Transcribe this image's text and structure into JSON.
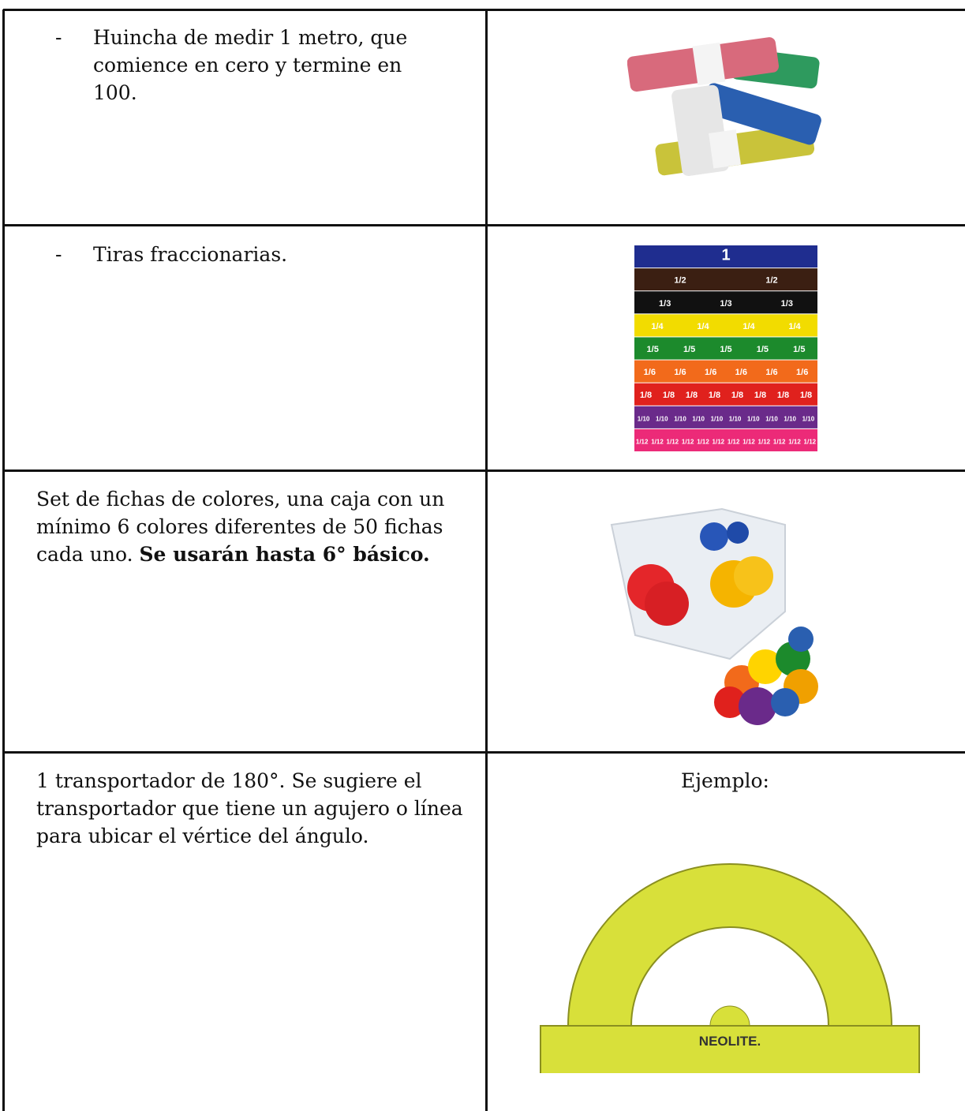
{
  "table": {
    "rows": [
      {
        "bullet": "-",
        "text": "Huincha de medir 1 metro, que comience en cero y termine en 100."
      },
      {
        "bullet": "-",
        "text": "Tiras fraccionarias.",
        "strips": [
          {
            "label": "1",
            "count": 1,
            "color": "#1f2d8f"
          },
          {
            "label": "1/2",
            "count": 2,
            "color": "#3b1f12"
          },
          {
            "label": "1/3",
            "count": 3,
            "color": "#111111"
          },
          {
            "label": "1/4",
            "count": 4,
            "color": "#f2dc00"
          },
          {
            "label": "1/5",
            "count": 5,
            "color": "#1c8a2c"
          },
          {
            "label": "1/6",
            "count": 6,
            "color": "#f26a1b"
          },
          {
            "label": "1/8",
            "count": 8,
            "color": "#e0211d"
          },
          {
            "label": "1/10",
            "count": 10,
            "color": "#6a2a8a"
          },
          {
            "label": "1/12",
            "count": 12,
            "color": "#ec2a78"
          }
        ]
      },
      {
        "text": "Set de fichas de colores, una caja con un mínimo 6 colores diferentes de 50 fichas cada uno.",
        "bold": "Se usarán hasta 6° básico."
      },
      {
        "text": "1 transportador de 180°. Se sugiere el transportador que tiene un agujero o línea para ubicar el vértice del ángulo.",
        "caption": "Ejemplo:",
        "brand": "NEOLITE."
      }
    ]
  }
}
